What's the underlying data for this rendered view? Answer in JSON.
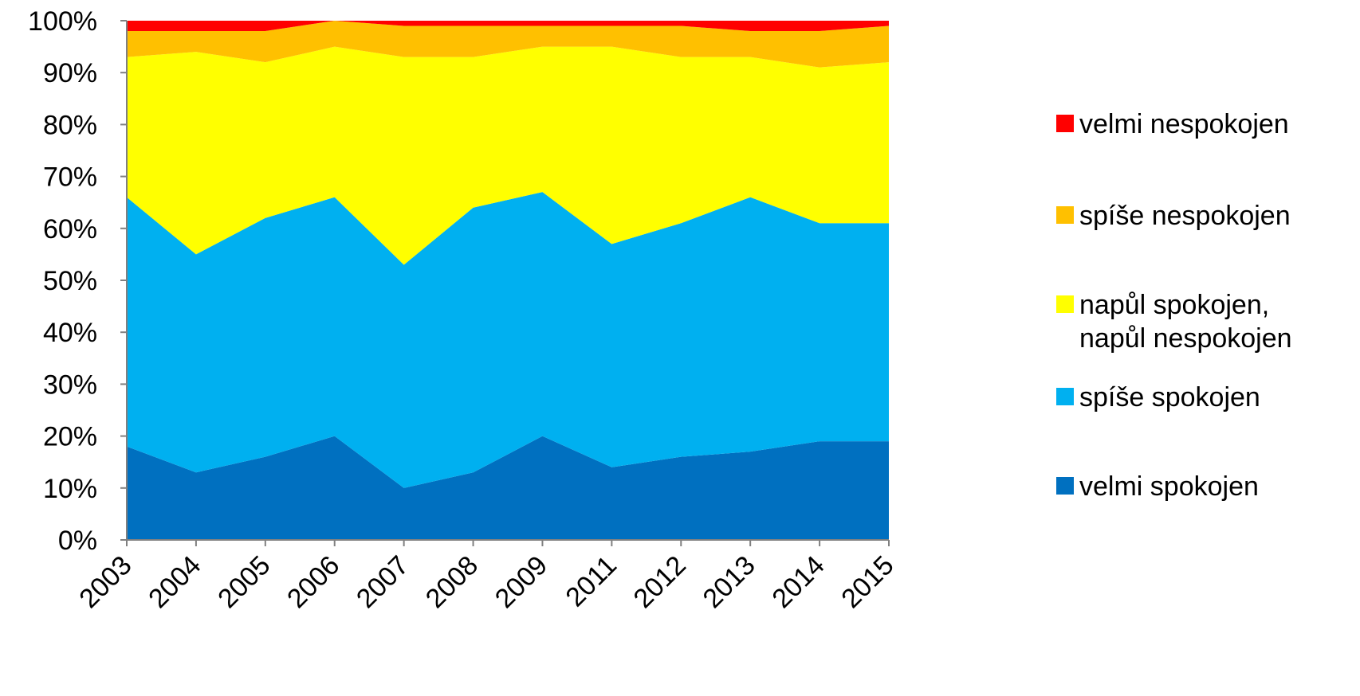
{
  "chart_data": {
    "type": "area",
    "stacked": true,
    "percent": true,
    "title": "",
    "xlabel": "",
    "ylabel": "",
    "ylim": [
      0,
      100
    ],
    "y_ticks": [
      "0%",
      "10%",
      "20%",
      "30%",
      "40%",
      "50%",
      "60%",
      "70%",
      "80%",
      "90%",
      "100%"
    ],
    "categories": [
      "2003",
      "2004",
      "2005",
      "2006",
      "2007",
      "2008",
      "2009",
      "2011",
      "2012",
      "2013",
      "2014",
      "2015"
    ],
    "legend_position": "right",
    "grid": false,
    "series": [
      {
        "name": "velmi spokojen",
        "color": "#0070C0",
        "values": [
          18,
          13,
          16,
          20,
          10,
          13,
          20,
          14,
          16,
          17,
          19,
          19
        ]
      },
      {
        "name": "spíše spokojen",
        "color": "#00B0F0",
        "values": [
          48,
          42,
          46,
          46,
          43,
          51,
          47,
          43,
          45,
          49,
          42,
          42
        ]
      },
      {
        "name": "napůl spokojen, napůl nespokojen",
        "color": "#FFFF00",
        "values": [
          27,
          39,
          30,
          29,
          40,
          29,
          28,
          38,
          32,
          27,
          30,
          31
        ]
      },
      {
        "name": "spíše nespokojen",
        "color": "#FFC000",
        "values": [
          5,
          4,
          6,
          5,
          6,
          6,
          4,
          4,
          6,
          5,
          7,
          7
        ]
      },
      {
        "name": "velmi nespokojen",
        "color": "#FF0000",
        "values": [
          2,
          2,
          2,
          0,
          1,
          1,
          1,
          1,
          1,
          2,
          2,
          1
        ]
      }
    ]
  }
}
